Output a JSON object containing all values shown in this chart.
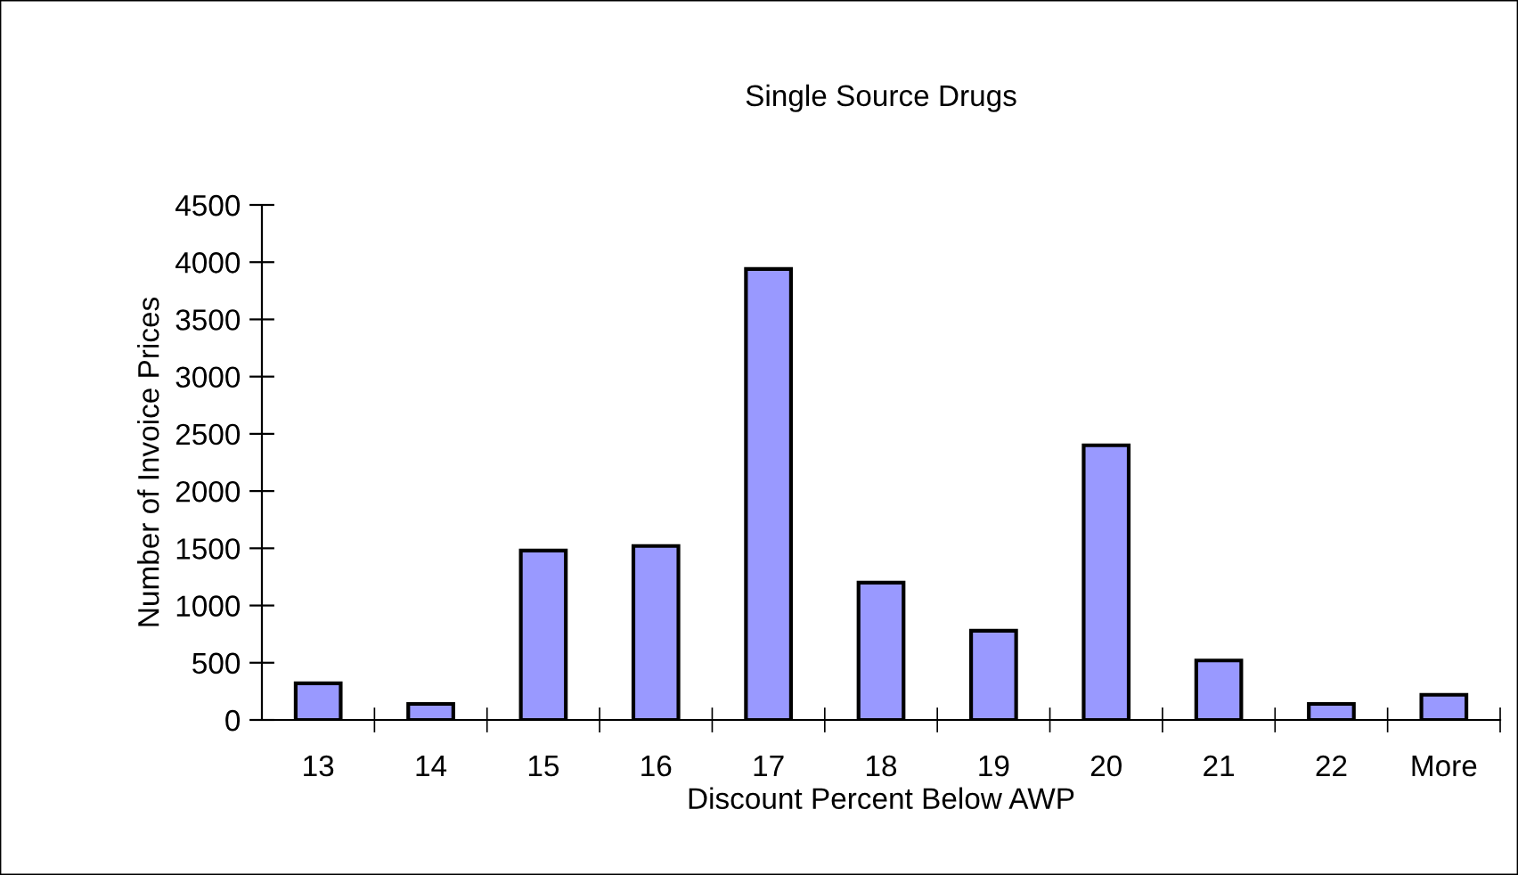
{
  "chart_data": {
    "type": "bar",
    "title": "Single Source Drugs",
    "xlabel": "Discount Percent Below AWP",
    "ylabel": "Number of Invoice Prices",
    "categories": [
      "13",
      "14",
      "15",
      "16",
      "17",
      "18",
      "19",
      "20",
      "21",
      "22",
      "More"
    ],
    "values": [
      320,
      140,
      1480,
      1520,
      3940,
      1200,
      780,
      2400,
      520,
      140,
      220
    ],
    "color": "#9999ff",
    "ylim": [
      0,
      4500
    ],
    "yticks": [
      0,
      500,
      1000,
      1500,
      2000,
      2500,
      3000,
      3500,
      4000,
      4500
    ],
    "grid": false,
    "legend": false
  }
}
